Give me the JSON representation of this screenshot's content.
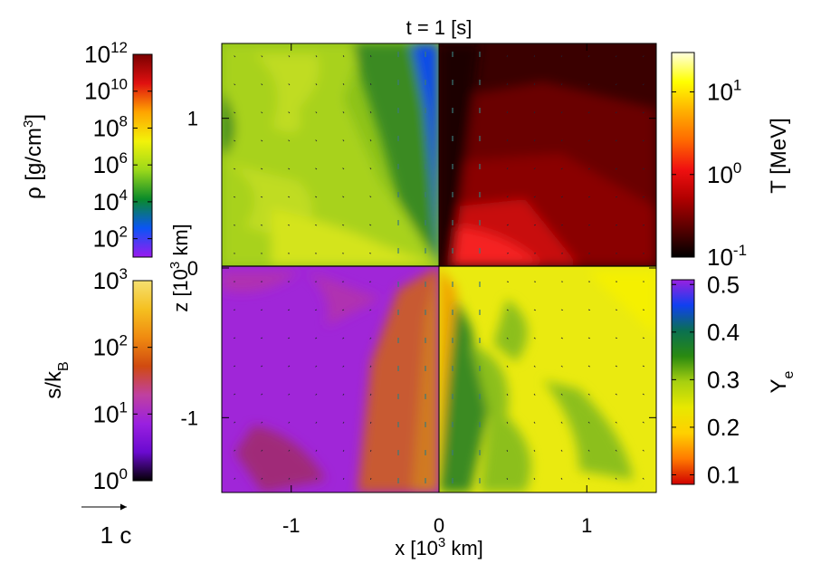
{
  "chart_data": {
    "type": "heatmap",
    "title": "t = 1 [s]",
    "xlabel_parts": [
      "x [10",
      "3",
      " km]"
    ],
    "ylabel_parts": [
      "z [10",
      "3",
      " km]"
    ],
    "xlim": [
      -1.47,
      1.47
    ],
    "ylim": [
      -1.5,
      1.5
    ],
    "x_ticks": [
      {
        "value": -1,
        "label": "-1"
      },
      {
        "value": 0,
        "label": "0"
      },
      {
        "value": 1,
        "label": "1"
      }
    ],
    "y_ticks": [
      {
        "value": 1,
        "label": "1"
      },
      {
        "value": 0,
        "label": "0"
      },
      {
        "value": -1,
        "label": "-1"
      }
    ],
    "quadrants": {
      "upper_left": "density",
      "upper_right": "temperature",
      "lower_left": "entropy",
      "lower_right": "electron_fraction"
    },
    "colorbars": {
      "density": {
        "label_parts": [
          "ρ [g/cm",
          "3",
          "]"
        ],
        "scale": "log",
        "range": [
          10,
          1000000000000
        ],
        "ticks": [
          {
            "value": 100,
            "base": "10",
            "exp": "2"
          },
          {
            "value": 10000,
            "base": "10",
            "exp": "4"
          },
          {
            "value": 1000000,
            "base": "10",
            "exp": "6"
          },
          {
            "value": 100000000,
            "base": "10",
            "exp": "8"
          },
          {
            "value": 10000000000,
            "base": "10",
            "exp": "10"
          },
          {
            "value": 1000000000000,
            "base": "10",
            "exp": "12"
          }
        ],
        "colors": [
          "#9a1af0",
          "#0a55f5",
          "#0a8a2a",
          "#9bd81a",
          "#f2f20a",
          "#ffa500",
          "#e01010",
          "#7a0000"
        ]
      },
      "entropy": {
        "label_parts": [
          "s/k",
          "B",
          ""
        ],
        "scale": "log",
        "range": [
          1,
          1000
        ],
        "ticks": [
          {
            "value": 1,
            "base": "10",
            "exp": "0"
          },
          {
            "value": 10,
            "base": "10",
            "exp": "1"
          },
          {
            "value": 100,
            "base": "10",
            "exp": "2"
          },
          {
            "value": 1000,
            "base": "10",
            "exp": "3"
          }
        ],
        "colors": [
          "#050005",
          "#6a0ad0",
          "#9a20e0",
          "#c040a0",
          "#d04a10",
          "#f08a10",
          "#f5c020",
          "#f5e070"
        ]
      },
      "temperature": {
        "label": "T [MeV]",
        "scale": "log",
        "range": [
          0.1,
          30
        ],
        "ticks": [
          {
            "value": 0.1,
            "base": "10",
            "exp": "-1"
          },
          {
            "value": 1,
            "base": "10",
            "exp": "0"
          },
          {
            "value": 10,
            "base": "10",
            "exp": "1"
          }
        ],
        "colors": [
          "#000000",
          "#5a0000",
          "#b00000",
          "#f01010",
          "#ff6a00",
          "#ffb000",
          "#ffff00",
          "#ffffe0"
        ]
      },
      "electron_fraction": {
        "label_parts": [
          "Y",
          "e",
          ""
        ],
        "scale": "linear",
        "range": [
          0.08,
          0.51
        ],
        "ticks": [
          {
            "value": 0.1,
            "label": "0.1"
          },
          {
            "value": 0.2,
            "label": "0.2"
          },
          {
            "value": 0.3,
            "label": "0.3"
          },
          {
            "value": 0.4,
            "label": "0.4"
          },
          {
            "value": 0.5,
            "label": "0.5"
          }
        ],
        "colors": [
          "#d00000",
          "#ff7a00",
          "#ffd000",
          "#e8e800",
          "#a8d010",
          "#2a8a10",
          "#0a7050",
          "#1040f0",
          "#9a20e0"
        ]
      }
    },
    "velocity_reference": {
      "label": "1 c"
    },
    "field_colors": {
      "density": [
        "#8cc21a",
        "#a8d21a",
        "#c0dc20",
        "#d4e41c",
        "#3a8a20",
        "#0d4be8"
      ],
      "temperature": [
        "#3a0000",
        "#6a0000",
        "#8a0505",
        "#c80808",
        "#f52020",
        "#1a0000"
      ],
      "entropy": [
        "#a026d8",
        "#b030b0",
        "#c85a30",
        "#d07a20",
        "#a02a78"
      ],
      "electron_fraction": [
        "#eaea10",
        "#f5f000",
        "#3a8a20",
        "#8cbf1a",
        "#f0a800"
      ]
    }
  }
}
